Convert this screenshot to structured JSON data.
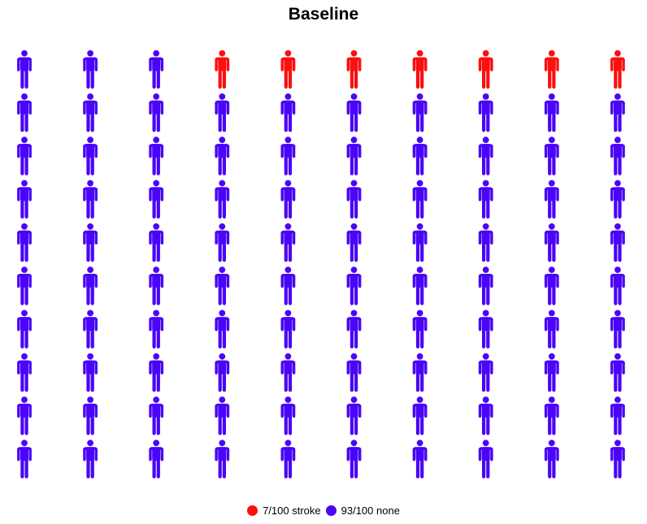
{
  "chart_data": {
    "type": "pictogram",
    "title": "Baseline",
    "total": 100,
    "columns": 10,
    "rows": 10,
    "fill_order": "top-row-from-right",
    "categories": [
      {
        "label": "7/100 stroke",
        "count": 7,
        "color": "#fd0f0f"
      },
      {
        "label": "93/100 none",
        "count": 93,
        "color": "#4a05f8"
      }
    ],
    "icon": "person-icon",
    "legend_position": "bottom"
  }
}
